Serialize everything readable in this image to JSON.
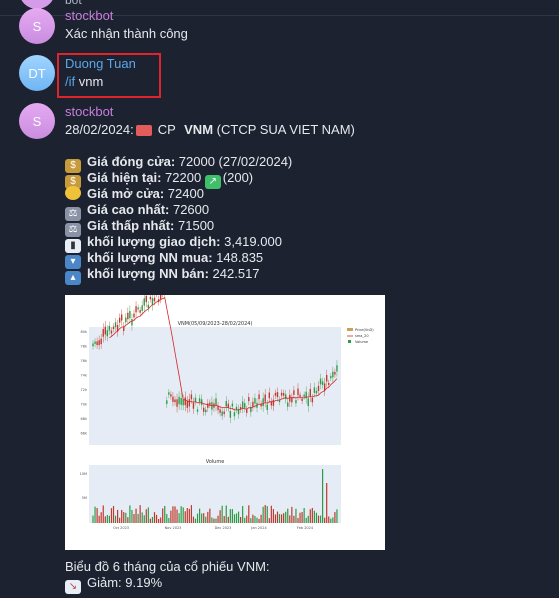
{
  "top_stub": {
    "text": "bot"
  },
  "messages": [
    {
      "sender": "stockbot",
      "avatar": "S",
      "text": "Xác nhận thành công"
    },
    {
      "sender": "Duong Tuan",
      "avatar": "DT",
      "command": "/if",
      "arg": " vnm"
    },
    {
      "sender": "stockbot",
      "avatar": "S",
      "header": {
        "date": "28/02/2024:",
        "cp": "CP",
        "ticker": "VNM",
        "company": "(CTCP SUA VIET NAM)"
      },
      "lines": [
        {
          "icon": "money-bag-icon",
          "label": "Giá đóng cửa:",
          "value": " 72000 (27/02/2024)"
        },
        {
          "icon": "money-bag-icon",
          "label": "Giá hiện tại:",
          "value": " 72200 ",
          "extra_icon": "chart-up-icon",
          "extra": "(200)"
        },
        {
          "icon": "coin-icon",
          "label": "Giá mở cửa:",
          "value": " 72400"
        },
        {
          "icon": "scale-icon",
          "label": "Giá cao nhất:",
          "value": "  72600"
        },
        {
          "icon": "scale-icon",
          "label": "Giá thấp nhất:",
          "value": " 71500"
        },
        {
          "icon": "bar-chart-icon",
          "label": "khối lượng giao dịch:",
          "value": " 3,419.000"
        },
        {
          "icon": "inbox-icon",
          "label": "khối lượng NN mua:",
          "value": " 148.835"
        },
        {
          "icon": "outbox-icon",
          "label": "khối lượng NN bán:",
          "value": " 242.517"
        }
      ],
      "footer": [
        "Biểu đồ 6 tháng của cổ phiếu VNM:",
        "Giảm: 9.19%"
      ]
    }
  ],
  "chart_data": {
    "type": "line",
    "title": "VNM(05/09/2023-28/02/2024)",
    "legend": [
      "Price(VnD)",
      "sma_20",
      "Volume"
    ],
    "x_ticks": [
      "Oct 2023",
      "Nov 2023",
      "Dec 2023",
      "Jan 2024",
      "Feb 2024"
    ],
    "y_ticks": [
      "80k",
      "78k",
      "76k",
      "74k",
      "72k",
      "70k",
      "68k",
      "66k"
    ],
    "ylim": [
      65000,
      81000
    ],
    "volume_title": "Volume",
    "volume_y_ticks": [
      "10M",
      "5M"
    ],
    "colors": {
      "up": "#2e9b44",
      "down": "#c0392b",
      "sma": "#d62728"
    }
  }
}
